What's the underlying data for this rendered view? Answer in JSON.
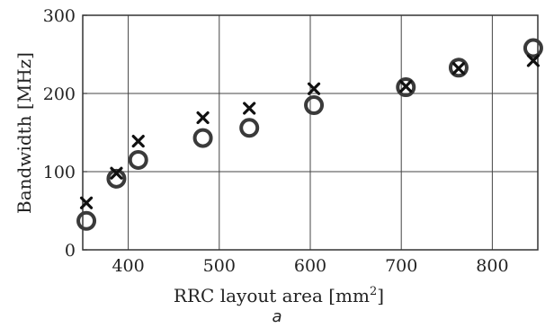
{
  "chart_data": {
    "type": "scatter",
    "xlabel": "RRC layout area [mm",
    "xlabel_sup": "2",
    "xlabel_tail": "]",
    "ylabel": "Bandwidth [MHz]",
    "caption": "a",
    "xlim": [
      350,
      850
    ],
    "ylim": [
      0,
      300
    ],
    "xticks": [
      400,
      500,
      600,
      700,
      800
    ],
    "yticks": [
      0,
      100,
      200,
      300
    ],
    "grid": true,
    "series": [
      {
        "marker": "circle",
        "color": "#3a3a3a",
        "points": [
          {
            "x": 354,
            "y": 37
          },
          {
            "x": 387,
            "y": 91
          },
          {
            "x": 411,
            "y": 115
          },
          {
            "x": 482,
            "y": 143
          },
          {
            "x": 533,
            "y": 156
          },
          {
            "x": 604,
            "y": 185
          },
          {
            "x": 705,
            "y": 208
          },
          {
            "x": 763,
            "y": 233
          },
          {
            "x": 845,
            "y": 258
          }
        ]
      },
      {
        "marker": "x",
        "color": "#111111",
        "points": [
          {
            "x": 354,
            "y": 60
          },
          {
            "x": 387,
            "y": 98
          },
          {
            "x": 411,
            "y": 139
          },
          {
            "x": 482,
            "y": 169
          },
          {
            "x": 533,
            "y": 181
          },
          {
            "x": 604,
            "y": 206
          },
          {
            "x": 705,
            "y": 209
          },
          {
            "x": 763,
            "y": 232
          },
          {
            "x": 845,
            "y": 242
          }
        ]
      }
    ]
  }
}
